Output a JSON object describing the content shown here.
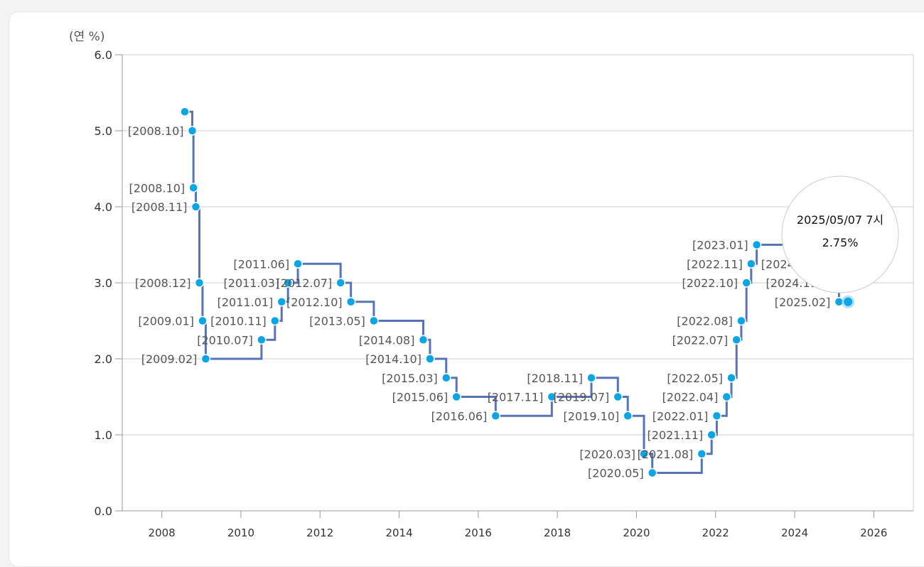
{
  "chart_data": {
    "type": "line",
    "step": "after",
    "unit_label": "(연 %)",
    "ylim": [
      0,
      6
    ],
    "yticks": [
      "0.0",
      "1.0",
      "2.0",
      "3.0",
      "4.0",
      "5.0",
      "6.0"
    ],
    "xlim": [
      2007,
      2027
    ],
    "xticks": [
      "2008",
      "2010",
      "2012",
      "2014",
      "2016",
      "2018",
      "2020",
      "2022",
      "2024",
      "2026"
    ],
    "grid": true,
    "colors": {
      "line": "#5874b8",
      "point": "#0aa5e6",
      "grid": "#cfcfcf",
      "axis": "#999999"
    },
    "points": [
      {
        "x": 2008.58,
        "y": 5.25,
        "label": ""
      },
      {
        "x": 2008.77,
        "y": 5.0,
        "label": "[2008.10]"
      },
      {
        "x": 2008.8,
        "y": 4.25,
        "label": "[2008.10]"
      },
      {
        "x": 2008.86,
        "y": 4.0,
        "label": "[2008.11]"
      },
      {
        "x": 2008.95,
        "y": 3.0,
        "label": "[2008.12]"
      },
      {
        "x": 2009.03,
        "y": 2.5,
        "label": "[2009.01]"
      },
      {
        "x": 2009.11,
        "y": 2.0,
        "label": "[2009.02]"
      },
      {
        "x": 2010.52,
        "y": 2.25,
        "label": "[2010.07]"
      },
      {
        "x": 2010.86,
        "y": 2.5,
        "label": "[2010.11]"
      },
      {
        "x": 2011.03,
        "y": 2.75,
        "label": "[2011.01]"
      },
      {
        "x": 2011.19,
        "y": 3.0,
        "label": "[2011.03]"
      },
      {
        "x": 2011.44,
        "y": 3.25,
        "label": "[2011.06]"
      },
      {
        "x": 2012.52,
        "y": 3.0,
        "label": "[2012.07]"
      },
      {
        "x": 2012.78,
        "y": 2.75,
        "label": "[2012.10]"
      },
      {
        "x": 2013.36,
        "y": 2.5,
        "label": "[2013.05]"
      },
      {
        "x": 2014.61,
        "y": 2.25,
        "label": "[2014.08]"
      },
      {
        "x": 2014.78,
        "y": 2.0,
        "label": "[2014.10]"
      },
      {
        "x": 2015.19,
        "y": 1.75,
        "label": "[2015.03]"
      },
      {
        "x": 2015.45,
        "y": 1.5,
        "label": "[2015.06]"
      },
      {
        "x": 2016.44,
        "y": 1.25,
        "label": "[2016.06]"
      },
      {
        "x": 2017.86,
        "y": 1.5,
        "label": "[2017.11]"
      },
      {
        "x": 2018.86,
        "y": 1.75,
        "label": "[2018.11]"
      },
      {
        "x": 2019.53,
        "y": 1.5,
        "label": "[2019.07]"
      },
      {
        "x": 2019.78,
        "y": 1.25,
        "label": "[2019.10]"
      },
      {
        "x": 2020.19,
        "y": 0.75,
        "label": "[2020.03]"
      },
      {
        "x": 2020.4,
        "y": 0.5,
        "label": "[2020.05]"
      },
      {
        "x": 2021.65,
        "y": 0.75,
        "label": "[2021.08]"
      },
      {
        "x": 2021.9,
        "y": 1.0,
        "label": "[2021.11]"
      },
      {
        "x": 2022.03,
        "y": 1.25,
        "label": "[2022.01]"
      },
      {
        "x": 2022.28,
        "y": 1.5,
        "label": "[2022.04]"
      },
      {
        "x": 2022.4,
        "y": 1.75,
        "label": "[2022.05]"
      },
      {
        "x": 2022.53,
        "y": 2.25,
        "label": "[2022.07]"
      },
      {
        "x": 2022.65,
        "y": 2.5,
        "label": "[2022.08]"
      },
      {
        "x": 2022.78,
        "y": 3.0,
        "label": "[2022.10]"
      },
      {
        "x": 2022.9,
        "y": 3.25,
        "label": "[2022.11]"
      },
      {
        "x": 2023.04,
        "y": 3.5,
        "label": "[2023.01]"
      },
      {
        "x": 2024.78,
        "y": 3.25,
        "label": "[2024.10]"
      },
      {
        "x": 2024.9,
        "y": 3.0,
        "label": "[2024.11]"
      },
      {
        "x": 2025.12,
        "y": 2.75,
        "label": "[2025.02]"
      },
      {
        "x": 2025.35,
        "y": 2.75,
        "label": ""
      }
    ],
    "tooltip": {
      "title": "2025/05/07 7시",
      "value": "2.75%"
    }
  }
}
